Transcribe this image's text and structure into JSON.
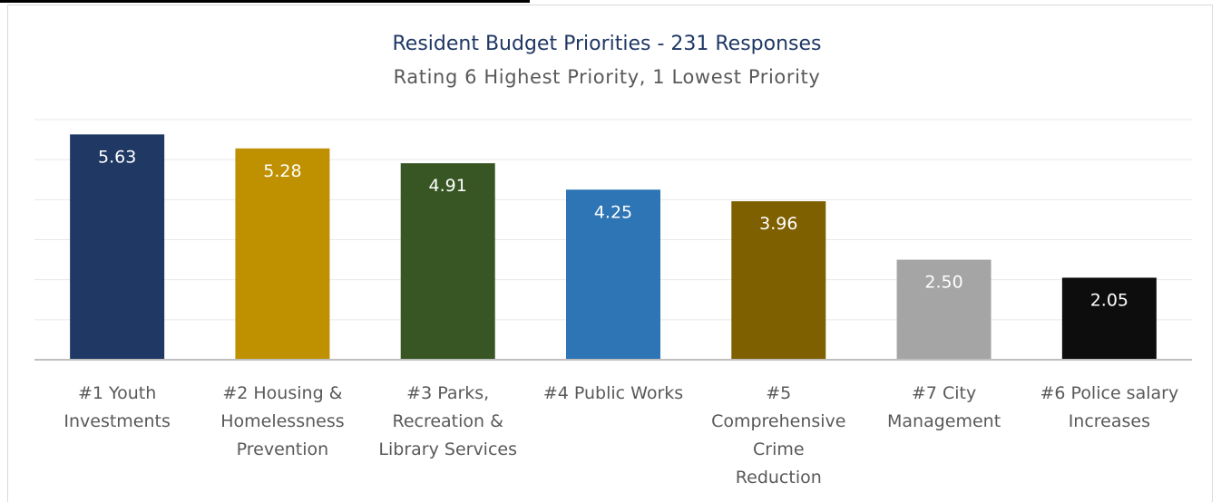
{
  "chart_data": {
    "type": "bar",
    "title": "Resident Budget Priorities - 231 Responses",
    "subtitle": "Rating 6 Highest Priority, 1 Lowest Priority",
    "categories": [
      "#1 Youth Investments",
      "#2 Housing & Homelessness Prevention",
      "#3 Parks, Recreation & Library Services",
      "#4 Public Works",
      "#5 Comprehensive Crime Reduction",
      "#7 City Management",
      "#6 Police salary Increases"
    ],
    "category_lines": [
      [
        "#1 Youth",
        "Investments"
      ],
      [
        "#2 Housing &",
        "Homelessness",
        "Prevention"
      ],
      [
        "#3 Parks,",
        "Recreation &",
        "Library Services"
      ],
      [
        "#4 Public Works"
      ],
      [
        "#5",
        "Comprehensive",
        "Crime",
        "Reduction"
      ],
      [
        "#7 City",
        "Management"
      ],
      [
        "#6 Police salary",
        "Increases"
      ]
    ],
    "values": [
      5.63,
      5.28,
      4.91,
      4.25,
      3.96,
      2.5,
      2.05
    ],
    "labels": [
      "5.63",
      "5.28",
      "4.91",
      "4.25",
      "3.96",
      "2.50",
      "2.05"
    ],
    "colors": [
      "#1f3864",
      "#bf9000",
      "#375623",
      "#2e75b6",
      "#7f6000",
      "#a5a5a5",
      "#0d0d0d"
    ],
    "xlabel": "",
    "ylabel": "",
    "grid": true,
    "legend": "none"
  }
}
